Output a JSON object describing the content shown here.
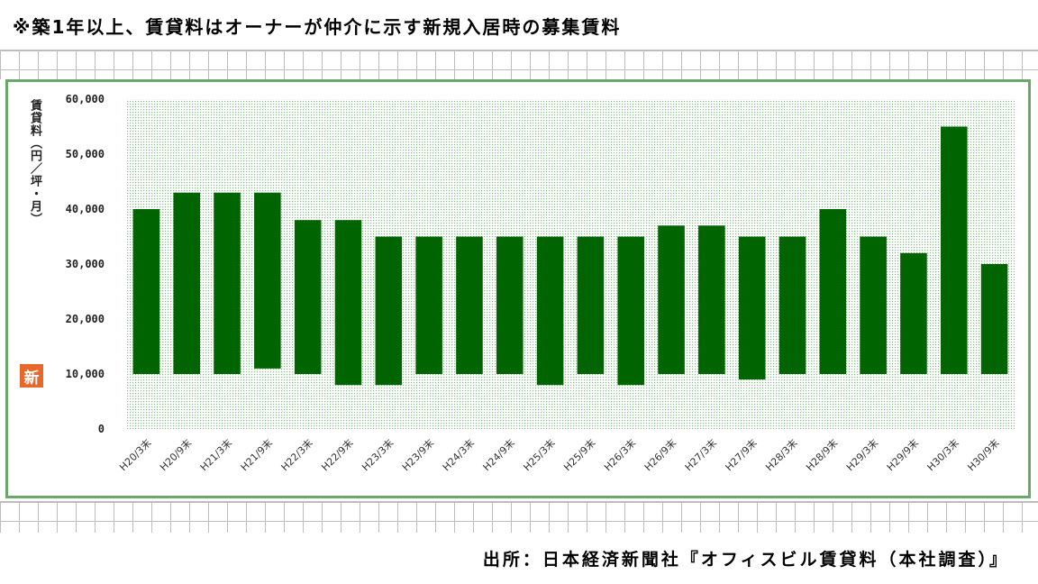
{
  "note": "※築1年以上、賃貸料はオーナーが仲介に示す新規入居時の募集賃料",
  "source": "出所：日本経済新聞社『オフィスビル賃貸料（本社調査）』",
  "logo_text": "新",
  "colors": {
    "bar": "#006400",
    "frame": "#6aa86a",
    "plot_dots": "#7fbf7f"
  },
  "chart_data": {
    "type": "bar",
    "chart_style": "floating range bars (low–high)",
    "ylabel": "賃貸料（円／坪・月）",
    "ylim": [
      0,
      60000
    ],
    "yticks": [
      "0",
      "10,000",
      "20,000",
      "30,000",
      "40,000",
      "50,000",
      "60,000"
    ],
    "categories": [
      "H20/3末",
      "H20/9末",
      "H21/3末",
      "H21/9末",
      "H22/3末",
      "H22/9末",
      "H23/3末",
      "H23/9末",
      "H24/3末",
      "H24/9末",
      "H25/3末",
      "H25/9末",
      "H26/3末",
      "H26/9末",
      "H27/3末",
      "H27/9末",
      "H28/3末",
      "H28/9末",
      "H29/3末",
      "H29/9末",
      "H30/3末",
      "H30/9末"
    ],
    "low": [
      10000,
      10000,
      10000,
      11000,
      10000,
      8000,
      8000,
      10000,
      10000,
      10000,
      8000,
      10000,
      8000,
      10000,
      10000,
      9000,
      10000,
      10000,
      10000,
      10000,
      10000,
      10000
    ],
    "high": [
      40000,
      43000,
      43000,
      43000,
      38000,
      38000,
      35000,
      35000,
      35000,
      35000,
      35000,
      35000,
      35000,
      37000,
      37000,
      35000,
      35000,
      40000,
      35000,
      32000,
      55000,
      30000
    ],
    "grid": false,
    "legend": "none"
  }
}
